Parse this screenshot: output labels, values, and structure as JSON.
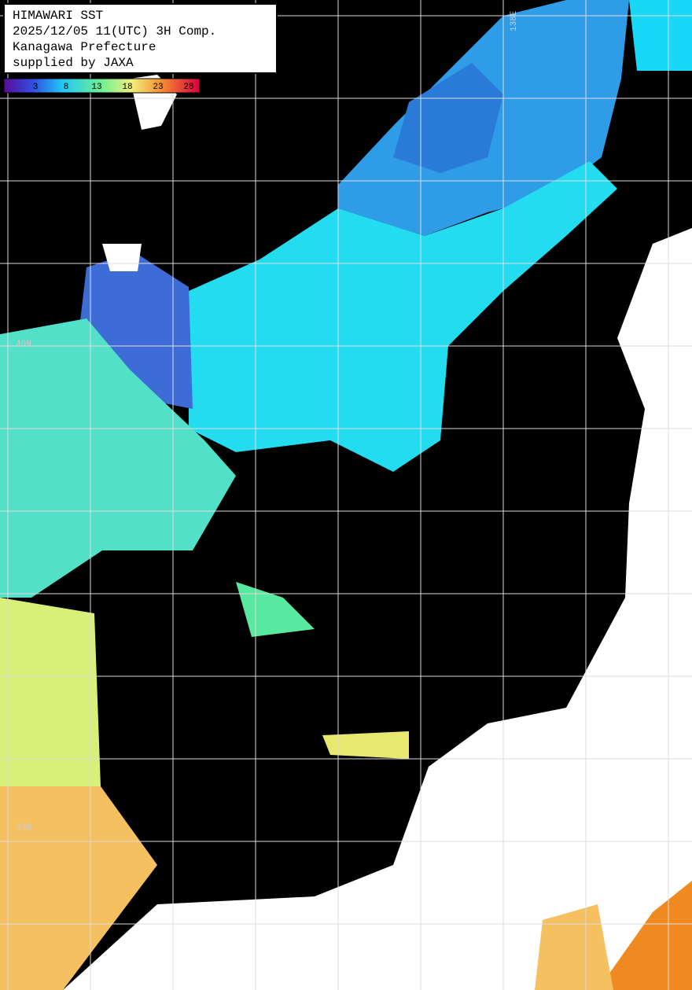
{
  "header": {
    "lines": [
      "HIMAWARI SST",
      "2025/12/05 11(UTC) 3H Comp.",
      "Kanagawa Prefecture",
      "supplied by JAXA"
    ]
  },
  "colorbar": {
    "ticks": [
      3,
      8,
      13,
      18,
      23,
      28
    ]
  },
  "grid_labels": {
    "longitude": "138E",
    "latitudes": [
      "40N",
      "35N"
    ]
  }
}
